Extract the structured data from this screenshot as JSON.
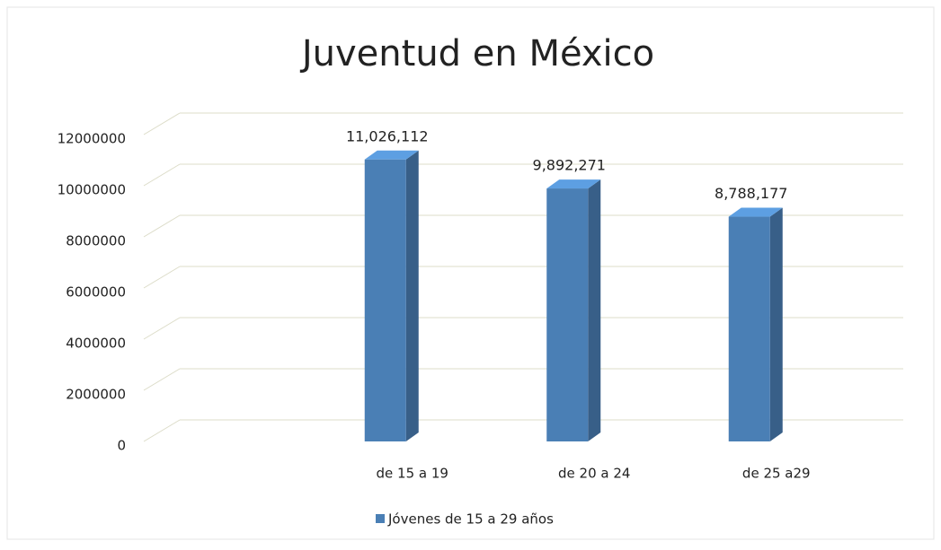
{
  "chart_data": {
    "type": "bar3d",
    "title": "Juventud en México",
    "categories": [
      null,
      "de 15 a 19",
      "de 20 a 24",
      "de 25 a29"
    ],
    "series": [
      {
        "name": "Jóvenes de 15 a 29 años",
        "color": "#4a7fb5",
        "values": [
          null,
          11026112,
          9892271,
          8788177
        ],
        "value_labels": [
          null,
          "11,026,112",
          "9,892,271",
          "8,788,177"
        ]
      }
    ],
    "ylim": [
      0,
      12000000
    ],
    "yticks": [
      0,
      2000000,
      4000000,
      6000000,
      8000000,
      10000000,
      12000000
    ],
    "grid": true,
    "legend": "bottom"
  }
}
